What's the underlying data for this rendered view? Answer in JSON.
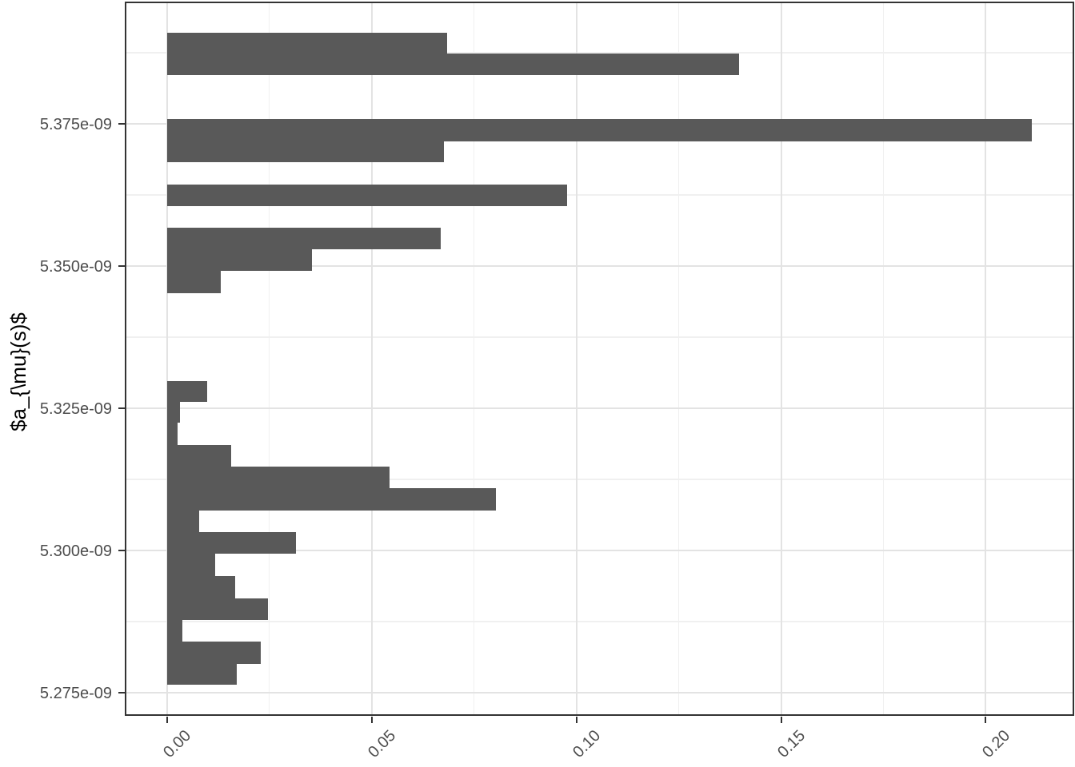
{
  "chart_data": {
    "type": "bar",
    "orientation": "horizontal_histogram",
    "title": "",
    "xlabel": "",
    "ylabel": "$a_{\\mu}(s)$",
    "legend": "none",
    "grid": "on",
    "x_axis": {
      "domain": [
        -0.0099,
        0.2212
      ],
      "major_ticks": [
        0.0,
        0.05,
        0.1,
        0.15,
        0.2
      ],
      "tick_labels": [
        "0.00",
        "0.05",
        "0.10",
        "0.15",
        "0.20"
      ],
      "minor_ticks": [
        0.025,
        0.075,
        0.125,
        0.175
      ],
      "label_angle_deg": 45
    },
    "y_axis": {
      "unit_scale": "1e-9",
      "domain": [
        5.27122,
        5.39621
      ],
      "major_ticks": [
        5.375,
        5.35,
        5.325,
        5.3,
        5.275
      ],
      "tick_labels": [
        "5.375e-09",
        "5.350e-09",
        "5.325e-09",
        "5.300e-09",
        "5.275e-09"
      ],
      "minor_ticks": [
        5.3875,
        5.3625,
        5.3375,
        5.3125,
        5.2875
      ]
    },
    "bars": [
      {
        "y_lo": 5.3874,
        "y_hi": 5.39101,
        "value": 0.0684
      },
      {
        "y_lo": 5.38357,
        "y_hi": 5.3874,
        "value": 0.1397
      },
      {
        "y_lo": 5.37195,
        "y_hi": 5.3758,
        "value": 0.2112
      },
      {
        "y_lo": 5.36822,
        "y_hi": 5.37195,
        "value": 0.0677
      },
      {
        "y_lo": 5.36049,
        "y_hi": 5.36437,
        "value": 0.0978
      },
      {
        "y_lo": 5.35299,
        "y_hi": 5.35674,
        "value": 0.0669
      },
      {
        "y_lo": 5.34911,
        "y_hi": 5.35299,
        "value": 0.0354
      },
      {
        "y_lo": 5.34522,
        "y_hi": 5.34911,
        "value": 0.0132
      },
      {
        "y_lo": 5.32608,
        "y_hi": 5.32973,
        "value": 0.0098
      },
      {
        "y_lo": 5.32243,
        "y_hi": 5.32608,
        "value": 0.0031
      },
      {
        "y_lo": 5.31858,
        "y_hi": 5.32243,
        "value": 0.0026
      },
      {
        "y_lo": 5.31475,
        "y_hi": 5.31858,
        "value": 0.0157
      },
      {
        "y_lo": 5.31091,
        "y_hi": 5.31475,
        "value": 0.0544
      },
      {
        "y_lo": 5.30698,
        "y_hi": 5.31091,
        "value": 0.0803
      },
      {
        "y_lo": 5.30323,
        "y_hi": 5.30698,
        "value": 0.0079
      },
      {
        "y_lo": 5.29948,
        "y_hi": 5.30323,
        "value": 0.0315
      },
      {
        "y_lo": 5.29555,
        "y_hi": 5.29948,
        "value": 0.0118
      },
      {
        "y_lo": 5.29161,
        "y_hi": 5.29555,
        "value": 0.0166
      },
      {
        "y_lo": 5.28782,
        "y_hi": 5.29161,
        "value": 0.0246
      },
      {
        "y_lo": 5.28399,
        "y_hi": 5.28782,
        "value": 0.0037
      },
      {
        "y_lo": 5.2801,
        "y_hi": 5.28399,
        "value": 0.0229
      },
      {
        "y_lo": 5.27636,
        "y_hi": 5.2801,
        "value": 0.017
      }
    ]
  },
  "style": {
    "background": "#FFFFFF",
    "bar_fill": "#595959",
    "panel_border": "#333333",
    "grid_major": "#E3E3E3",
    "grid_minor": "#F0F0F0",
    "tick_mark_color": "#333333",
    "tick_label_color": "#4D4D4D",
    "axis_title_color": "#000000"
  }
}
